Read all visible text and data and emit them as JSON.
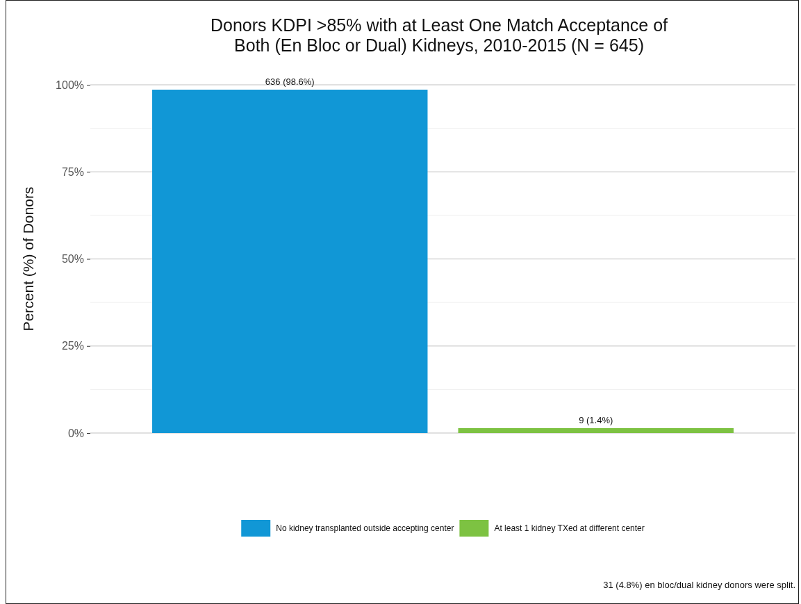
{
  "chart_data": {
    "type": "bar",
    "title": "Donors KDPI >85% with at Least One Match Acceptance of\nBoth (En Bloc or Dual) Kidneys, 2010-2015 (N = 645)",
    "ylabel": "Percent (%) of Donors",
    "categories": [
      null,
      null
    ],
    "series": [
      {
        "name": "No kidney transplanted outside accepting center",
        "color": "#1197d6",
        "values": [
          98.6,
          null
        ],
        "value_labels": [
          "636 (98.6%)",
          null
        ]
      },
      {
        "name": "At least 1 kidney TXed at different center",
        "color": "#7dc242",
        "values": [
          null,
          1.4
        ],
        "value_labels": [
          null,
          "9 (1.4%)"
        ]
      }
    ],
    "ylim": [
      0,
      100
    ],
    "yticks": [
      {
        "value": 0,
        "label": "0%"
      },
      {
        "value": 25,
        "label": "25%"
      },
      {
        "value": 50,
        "label": "50%"
      },
      {
        "value": 75,
        "label": "75%"
      },
      {
        "value": 100,
        "label": "100%"
      }
    ],
    "grid": true,
    "legend": "bottom",
    "annotations": [
      "31 (4.8%) en bloc/dual kidney donors were split."
    ]
  }
}
